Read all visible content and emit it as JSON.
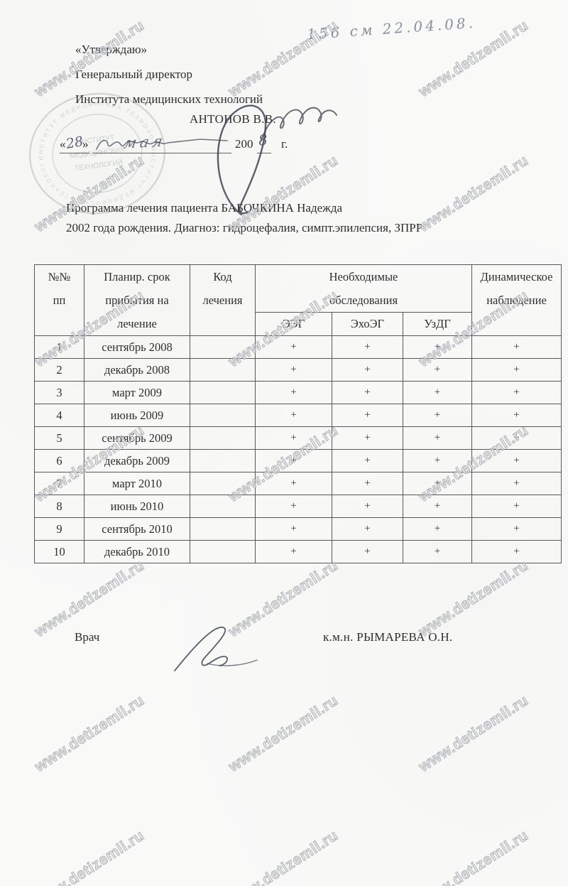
{
  "colors": {
    "paper": "#f9f9f8",
    "ink_handwriting": "#4a5269",
    "watermark_gray": "#9a9ea6",
    "stamp_green_gray": "#93a092",
    "text": "#2d2d30"
  },
  "document": {
    "watermark": "www.detizemli.ru",
    "handwritten_note": "156 см 22.04.08.",
    "approval": {
      "approve": "«Утверждаю»",
      "role": "Генеральный директор",
      "org": "Института медицинских технологий",
      "name": "АНТОНОВ В.В.",
      "quote_open": "«",
      "quote_close": "»",
      "day_handwritten": "28",
      "month_handwritten": "мая",
      "year_printed": "200",
      "year_digit_handwritten": "8",
      "year_suffix": "г."
    },
    "patient": {
      "line1": "Программа лечения пациента БАБОЧКИНА Надежда",
      "line2": "2002 года рождения. Диагноз: гидроцефалия, симпт.эпилепсия, ЗПРР"
    },
    "stamp": {
      "ring_text": "ИНСТИТУТ МЕДИЦИНСКИХ ТЕХНОЛОГИЙ",
      "center_line1": "ИНСТИТУТ",
      "center_line2": "МЕДИЦИНСКИХ",
      "center_line3": "ТЕХНОЛОГИЙ"
    },
    "footer": {
      "doctor_label": "Врач",
      "doctor_name": "к.м.н. РЫМАРЕВА О.Н."
    }
  },
  "table": {
    "header": {
      "num1": "№№",
      "num2": "пп",
      "plan1": "Планир. срок",
      "plan2": "прибытия на",
      "plan3": "лечение",
      "code1": "Код",
      "code2": "лечения",
      "exam1": "Необходимые",
      "exam2": "обследования",
      "sub": [
        "ЭЭГ",
        "ЭхоЭГ",
        "УзДГ"
      ],
      "dyn1": "Динамическое",
      "dyn2": "наблюдение"
    },
    "rows": [
      {
        "num": "1",
        "period": "сентябрь 2008",
        "code": "",
        "eeg": "+",
        "echo": "+",
        "uzdg": "+",
        "dyn": "+"
      },
      {
        "num": "2",
        "period": "декабрь 2008",
        "code": "",
        "eeg": "+",
        "echo": "+",
        "uzdg": "+",
        "dyn": "+"
      },
      {
        "num": "3",
        "period": "март 2009",
        "code": "",
        "eeg": "+",
        "echo": "+",
        "uzdg": "+",
        "dyn": "+"
      },
      {
        "num": "4",
        "period": "июнь 2009",
        "code": "",
        "eeg": "+",
        "echo": "+",
        "uzdg": "+",
        "dyn": "+"
      },
      {
        "num": "5",
        "period": "сентябрь 2009",
        "code": "",
        "eeg": "+",
        "echo": "+",
        "uzdg": "+",
        "dyn": "+"
      },
      {
        "num": "6",
        "period": "декабрь 2009",
        "code": "",
        "eeg": "+",
        "echo": "+",
        "uzdg": "+",
        "dyn": "+"
      },
      {
        "num": "7",
        "period": "март 2010",
        "code": "",
        "eeg": "+",
        "echo": "+",
        "uzdg": "+",
        "dyn": "+"
      },
      {
        "num": "8",
        "period": "июнь 2010",
        "code": "",
        "eeg": "+",
        "echo": "+",
        "uzdg": "+",
        "dyn": "+"
      },
      {
        "num": "9",
        "period": "сентябрь 2010",
        "code": "",
        "eeg": "+",
        "echo": "+",
        "uzdg": "+",
        "dyn": "+"
      },
      {
        "num": "10",
        "period": "декабрь 2010",
        "code": "",
        "eeg": "+",
        "echo": "+",
        "uzdg": "+",
        "dyn": "+"
      }
    ]
  }
}
